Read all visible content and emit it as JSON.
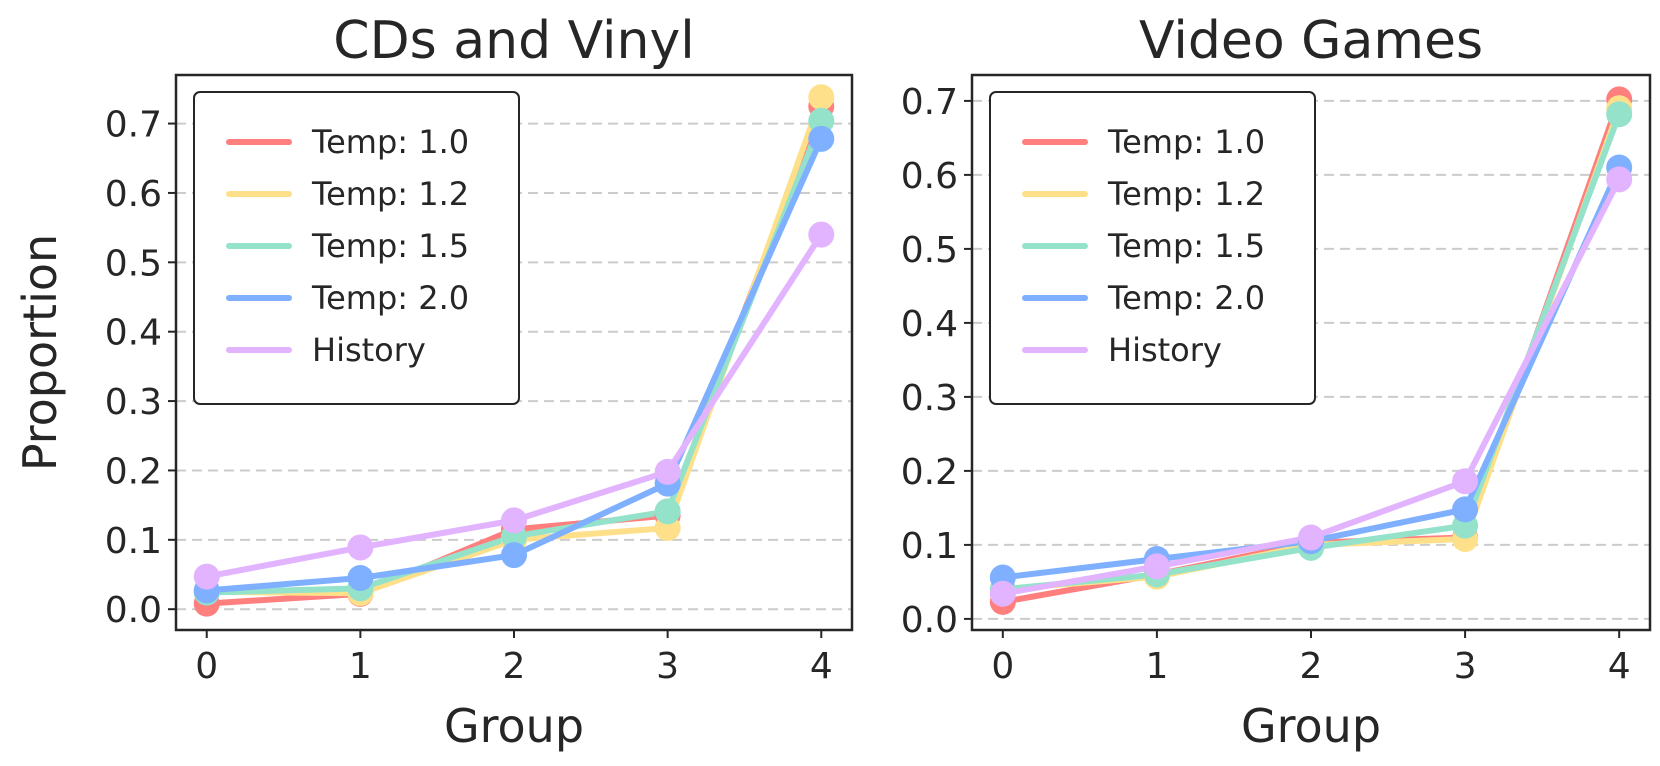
{
  "chart_data": [
    {
      "type": "line",
      "title": "CDs and Vinyl",
      "xlabel": "Group",
      "ylabel": "Proportion",
      "x": [
        0,
        1,
        2,
        3,
        4
      ],
      "xticks": [
        "0",
        "1",
        "2",
        "3",
        "4"
      ],
      "yticks": [
        "0.0",
        "0.1",
        "0.2",
        "0.3",
        "0.4",
        "0.5",
        "0.6",
        "0.7"
      ],
      "xlim": [
        -0.2,
        4.2
      ],
      "ylim": [
        -0.03,
        0.77
      ],
      "grid": "horizontal-dashed",
      "legend_position": "top-left",
      "series": [
        {
          "name": "Temp: 1.0",
          "color": "#ff7f7f",
          "values": [
            0.008,
            0.022,
            0.115,
            0.135,
            0.725
          ]
        },
        {
          "name": "Temp: 1.2",
          "color": "#ffe08a",
          "values": [
            0.025,
            0.023,
            0.1,
            0.117,
            0.738
          ]
        },
        {
          "name": "Temp: 1.5",
          "color": "#94e2c9",
          "values": [
            0.024,
            0.03,
            0.105,
            0.141,
            0.704
          ]
        },
        {
          "name": "Temp: 2.0",
          "color": "#7eb0ff",
          "values": [
            0.027,
            0.045,
            0.078,
            0.181,
            0.678
          ]
        },
        {
          "name": "History",
          "color": "#e2b3ff",
          "values": [
            0.047,
            0.089,
            0.128,
            0.198,
            0.54
          ]
        }
      ]
    },
    {
      "type": "line",
      "title": "Video Games",
      "xlabel": "Group",
      "ylabel": "",
      "x": [
        0,
        1,
        2,
        3,
        4
      ],
      "xticks": [
        "0",
        "1",
        "2",
        "3",
        "4"
      ],
      "yticks": [
        "0.0",
        "0.1",
        "0.2",
        "0.3",
        "0.4",
        "0.5",
        "0.6",
        "0.7"
      ],
      "xlim": [
        -0.2,
        4.2
      ],
      "ylim": [
        -0.015,
        0.735
      ],
      "grid": "horizontal-dashed",
      "legend_position": "top-left",
      "series": [
        {
          "name": "Temp: 1.0",
          "color": "#ff7f7f",
          "values": [
            0.023,
            0.06,
            0.103,
            0.11,
            0.702
          ]
        },
        {
          "name": "Temp: 1.2",
          "color": "#ffe08a",
          "values": [
            0.04,
            0.057,
            0.1,
            0.108,
            0.69
          ]
        },
        {
          "name": "Temp: 1.5",
          "color": "#94e2c9",
          "values": [
            0.04,
            0.06,
            0.096,
            0.126,
            0.682
          ]
        },
        {
          "name": "Temp: 2.0",
          "color": "#7eb0ff",
          "values": [
            0.056,
            0.081,
            0.105,
            0.148,
            0.61
          ]
        },
        {
          "name": "History",
          "color": "#e2b3ff",
          "values": [
            0.034,
            0.071,
            0.11,
            0.186,
            0.594
          ]
        }
      ]
    }
  ]
}
